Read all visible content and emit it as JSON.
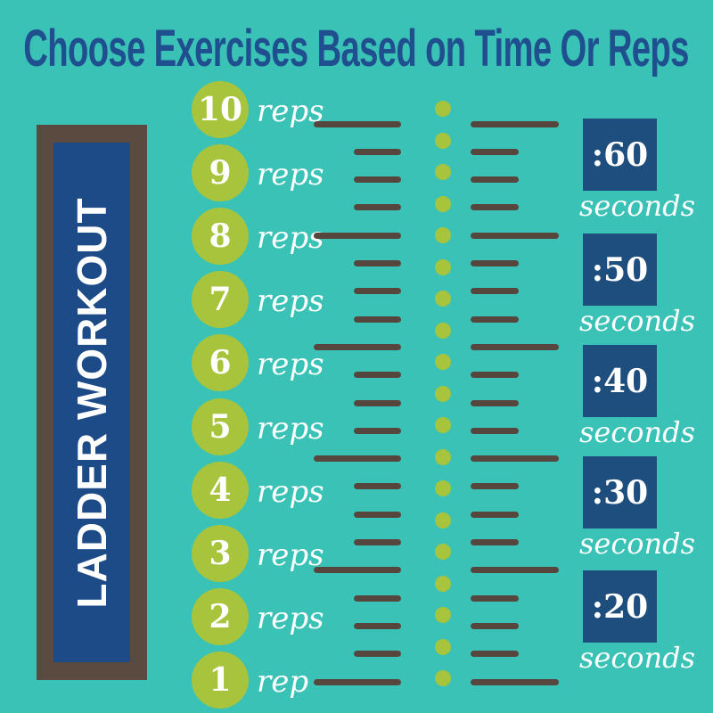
{
  "title": "Choose Exercises Based on Time Or Reps",
  "sidebar": {
    "label": "LADDER WORKOUT"
  },
  "reps_column": {
    "items": [
      {
        "number": "10",
        "unit": "reps"
      },
      {
        "number": "9",
        "unit": "reps"
      },
      {
        "number": "8",
        "unit": "reps"
      },
      {
        "number": "7",
        "unit": "reps"
      },
      {
        "number": "6",
        "unit": "reps"
      },
      {
        "number": "5",
        "unit": "reps"
      },
      {
        "number": "4",
        "unit": "reps"
      },
      {
        "number": "3",
        "unit": "reps"
      },
      {
        "number": "2",
        "unit": "reps"
      },
      {
        "number": "1",
        "unit": "rep"
      }
    ]
  },
  "time_column": {
    "items": [
      {
        "time": ":60",
        "unit": "seconds"
      },
      {
        "time": ":50",
        "unit": "seconds"
      },
      {
        "time": ":40",
        "unit": "seconds"
      },
      {
        "time": ":30",
        "unit": "seconds"
      },
      {
        "time": ":20",
        "unit": "seconds"
      }
    ]
  },
  "ladder": {
    "rung_rows": 21,
    "long_rung_interval": 4,
    "dot_count": 19
  },
  "colors": {
    "background": "#39c2b5",
    "title_blue": "#1f4f8e",
    "accent_green": "#a8c43c",
    "dash_brown": "#57463d",
    "frame_brown": "#5b4a3f",
    "panel_blue": "#1d4b88",
    "square_blue": "#1e4e7d",
    "text_white": "#ffffff"
  }
}
